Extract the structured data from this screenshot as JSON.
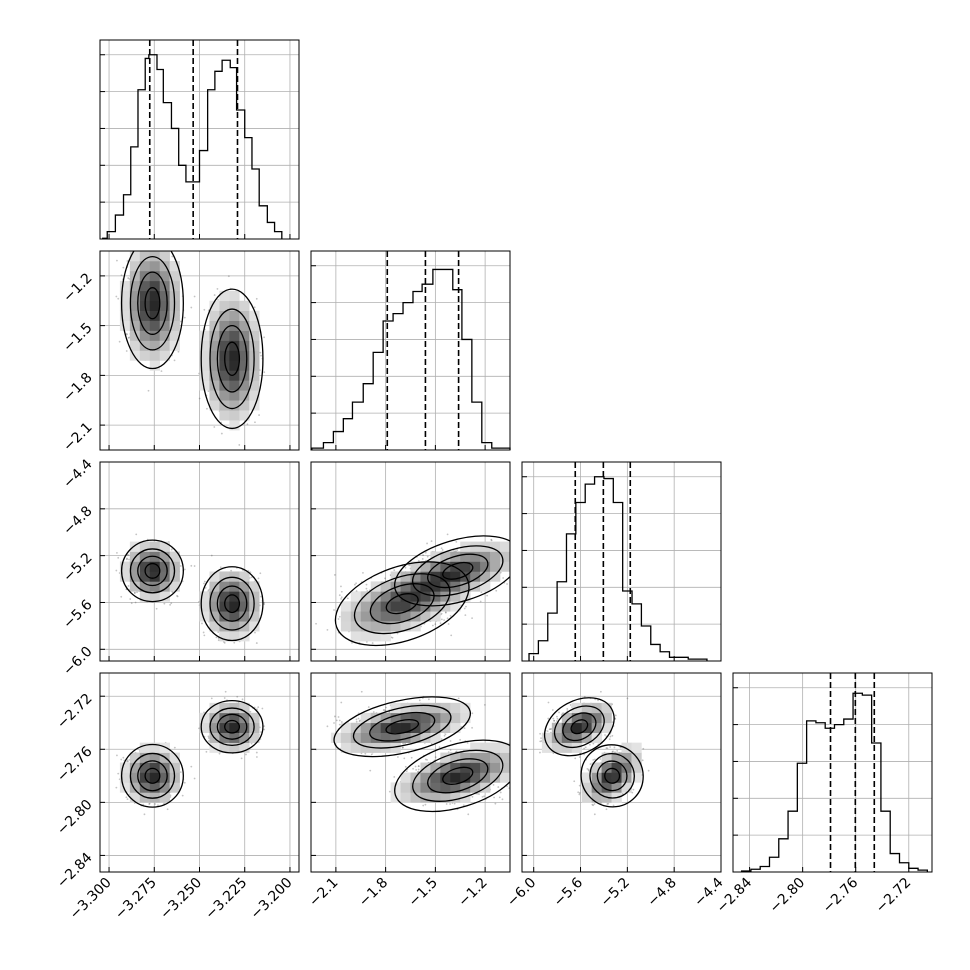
{
  "chart_data": {
    "type": "corner",
    "grid": true,
    "variables": [
      {
        "range": [
          -3.305,
          -3.195
        ],
        "ticks": [
          -3.3,
          -3.275,
          -3.25,
          -3.225,
          -3.2
        ],
        "tick_labels": [
          "−3.300",
          "−3.275",
          "−3.250",
          "−3.225",
          "−3.200"
        ],
        "quantiles": [
          -3.2775,
          -3.2535,
          -3.229
        ],
        "hist_bins": [
          -3.3035,
          -3.301,
          -3.2965,
          -3.292,
          -3.288,
          -3.284,
          -3.28,
          -3.278,
          -3.2735,
          -3.27,
          -3.2655,
          -3.2615,
          -3.2575,
          -3.254,
          -3.25,
          -3.2455,
          -3.2415,
          -3.2375,
          -3.233,
          -3.2295,
          -3.225,
          -3.221,
          -3.217,
          -3.2125,
          -3.2085,
          -3.2045
        ],
        "hist_counts": [
          0.004,
          0.04,
          0.13,
          0.24,
          0.5,
          0.81,
          0.98,
          1.0,
          0.92,
          0.74,
          0.6,
          0.4,
          0.31,
          0.31,
          0.48,
          0.81,
          0.91,
          0.97,
          0.93,
          0.7,
          0.55,
          0.38,
          0.18,
          0.09,
          0.04
        ]
      },
      {
        "range": [
          -2.25,
          -1.05
        ],
        "ticks": [
          -2.1,
          -1.8,
          -1.5,
          -1.2
        ],
        "tick_labels": [
          "−2.1",
          "−1.8",
          "−1.5",
          "−1.2"
        ],
        "quantiles": [
          -1.79,
          -1.56,
          -1.36
        ],
        "hist_bins": [
          -2.245,
          -2.175,
          -2.115,
          -2.055,
          -2.0,
          -1.935,
          -1.875,
          -1.815,
          -1.755,
          -1.695,
          -1.635,
          -1.58,
          -1.515,
          -1.455,
          -1.395,
          -1.34,
          -1.28,
          -1.22,
          -1.16,
          -1.1,
          -1.045
        ],
        "hist_counts": [
          0.01,
          0.04,
          0.1,
          0.17,
          0.26,
          0.36,
          0.53,
          0.7,
          0.74,
          0.8,
          0.86,
          0.9,
          0.98,
          0.98,
          0.87,
          0.6,
          0.26,
          0.04,
          0.01,
          0.01
        ]
      },
      {
        "range": [
          -6.1,
          -4.4
        ],
        "ticks": [
          -6.0,
          -5.6,
          -5.2,
          -4.8,
          -4.4
        ],
        "tick_labels": [
          "−6.0",
          "−5.6",
          "−5.2",
          "−4.8",
          "−4.4"
        ],
        "quantiles": [
          -5.645,
          -5.405,
          -5.175
        ],
        "hist_bins": [
          -6.04,
          -5.96,
          -5.88,
          -5.8,
          -5.72,
          -5.64,
          -5.56,
          -5.48,
          -5.4,
          -5.32,
          -5.24,
          -5.16,
          -5.08,
          -5.0,
          -4.92,
          -4.84,
          -4.76,
          -4.68,
          -4.6,
          -4.52
        ],
        "hist_counts": [
          0.04,
          0.11,
          0.26,
          0.43,
          0.69,
          0.86,
          0.96,
          1.0,
          0.99,
          0.86,
          0.38,
          0.31,
          0.19,
          0.09,
          0.05,
          0.02,
          0.02,
          0.01,
          0.01
        ]
      },
      {
        "range": [
          -2.8525,
          -2.7025
        ],
        "ticks": [
          -2.84,
          -2.8,
          -2.76,
          -2.72
        ],
        "tick_labels": [
          "−2.84",
          "−2.80",
          "−2.76",
          "−2.72"
        ],
        "quantiles": [
          -2.779,
          -2.7603,
          -2.746
        ],
        "hist_bins": [
          -2.846,
          -2.839,
          -2.832,
          -2.825,
          -2.818,
          -2.811,
          -2.804,
          -2.797,
          -2.79,
          -2.783,
          -2.776,
          -2.769,
          -2.762,
          -2.755,
          -2.748,
          -2.741,
          -2.734,
          -2.727,
          -2.72,
          -2.713,
          -2.706
        ],
        "hist_counts": [
          0.005,
          0.015,
          0.03,
          0.08,
          0.18,
          0.33,
          0.59,
          0.82,
          0.81,
          0.78,
          0.8,
          0.83,
          0.97,
          0.96,
          0.7,
          0.33,
          0.1,
          0.05,
          0.02,
          0.01
        ]
      }
    ],
    "modes": [
      {
        "weight": 0.5,
        "mean": [
          -3.276,
          -1.365,
          -5.33,
          -2.78
        ],
        "sd": [
          0.0065,
          0.15,
          0.1,
          0.009
        ]
      },
      {
        "weight": 0.5,
        "mean": [
          -3.232,
          -1.7,
          -5.61,
          -2.743
        ],
        "sd": [
          0.0065,
          0.16,
          0.12,
          0.0075
        ]
      }
    ]
  }
}
